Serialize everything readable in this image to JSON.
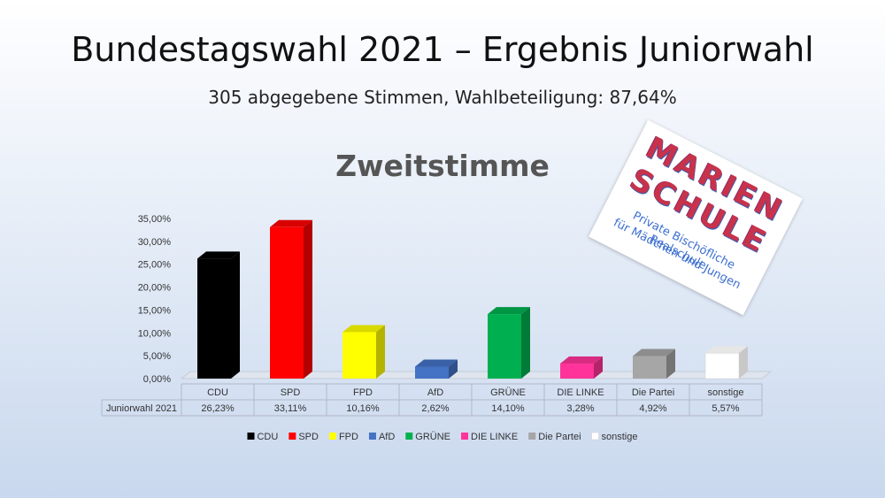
{
  "title": "Bundestagswahl 2021 – Ergebnis Juniorwahl",
  "subtitle": "305 abgegebene Stimmen, Wahlbeteiligung: 87,64%",
  "logo": {
    "line1": "MARIEN",
    "line2": "SCHULE",
    "sub1": "Private Bischöfliche Realschule",
    "sub2": "für Mädchen und Jungen"
  },
  "chart_data": {
    "type": "bar",
    "title": "Zweitstimme",
    "categories": [
      "CDU",
      "SPD",
      "FPD",
      "AfD",
      "GRÜNE",
      "DIE LINKE",
      "Die Partei",
      "sonstige"
    ],
    "series": [
      {
        "name": "Juniorwahl 2021",
        "values": [
          26.23,
          33.11,
          10.16,
          2.62,
          14.1,
          3.28,
          4.92,
          5.57
        ]
      }
    ],
    "value_labels": [
      "26,23%",
      "33,11%",
      "10,16%",
      "2,62%",
      "14,10%",
      "3,28%",
      "4,92%",
      "5,57%"
    ],
    "colors": [
      "#000000",
      "#ff0000",
      "#ffff00",
      "#4472c4",
      "#00b050",
      "#ff3399",
      "#a6a6a6",
      "#ffffff"
    ],
    "y_ticks": [
      "0,00%",
      "5,00%",
      "10,00%",
      "15,00%",
      "20,00%",
      "25,00%",
      "30,00%",
      "35,00%"
    ],
    "ylim": [
      0,
      35
    ],
    "grid": false,
    "legend_placement": "bottom",
    "data_table": true
  }
}
